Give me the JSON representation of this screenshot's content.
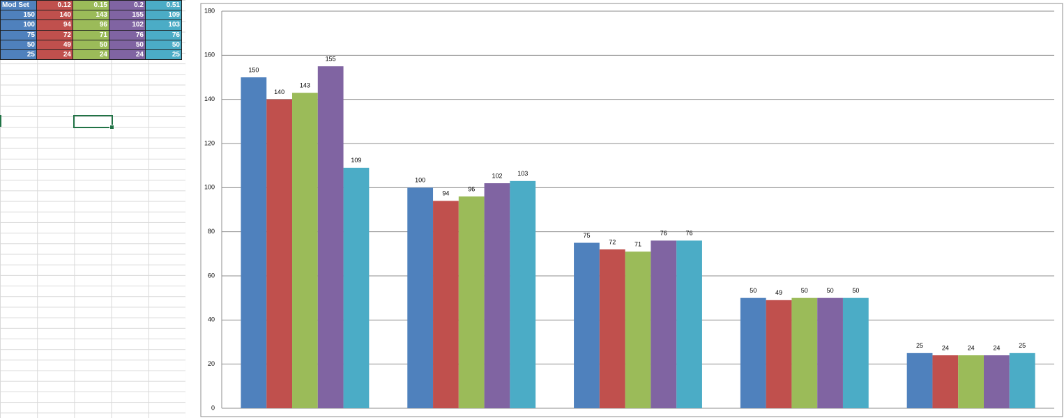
{
  "table": {
    "header": [
      "Mod Set",
      "0.12",
      "0.15",
      "0.2",
      "0.51"
    ],
    "rows": [
      [
        "150",
        "140",
        "143",
        "155",
        "109"
      ],
      [
        "100",
        "94",
        "96",
        "102",
        "103"
      ],
      [
        "75",
        "72",
        "71",
        "76",
        "76"
      ],
      [
        "50",
        "49",
        "50",
        "50",
        "50"
      ],
      [
        "25",
        "24",
        "24",
        "24",
        "25"
      ]
    ]
  },
  "chart_data": {
    "type": "bar",
    "categories": [
      null,
      null,
      null,
      null,
      null
    ],
    "series": [
      {
        "color": "#4f81bd",
        "values": [
          150,
          100,
          75,
          50,
          25
        ]
      },
      {
        "color": "#c0504d",
        "values": [
          140,
          94,
          72,
          49,
          24
        ]
      },
      {
        "color": "#9bbb59",
        "values": [
          143,
          96,
          71,
          50,
          24
        ]
      },
      {
        "color": "#8064a2",
        "values": [
          155,
          102,
          76,
          50,
          24
        ]
      },
      {
        "color": "#4bacc6",
        "values": [
          109,
          103,
          76,
          50,
          25
        ]
      }
    ],
    "ylim": [
      0,
      180
    ],
    "yticks": [
      0,
      20,
      40,
      60,
      80,
      100,
      120,
      140,
      160,
      180
    ],
    "grid": true
  }
}
